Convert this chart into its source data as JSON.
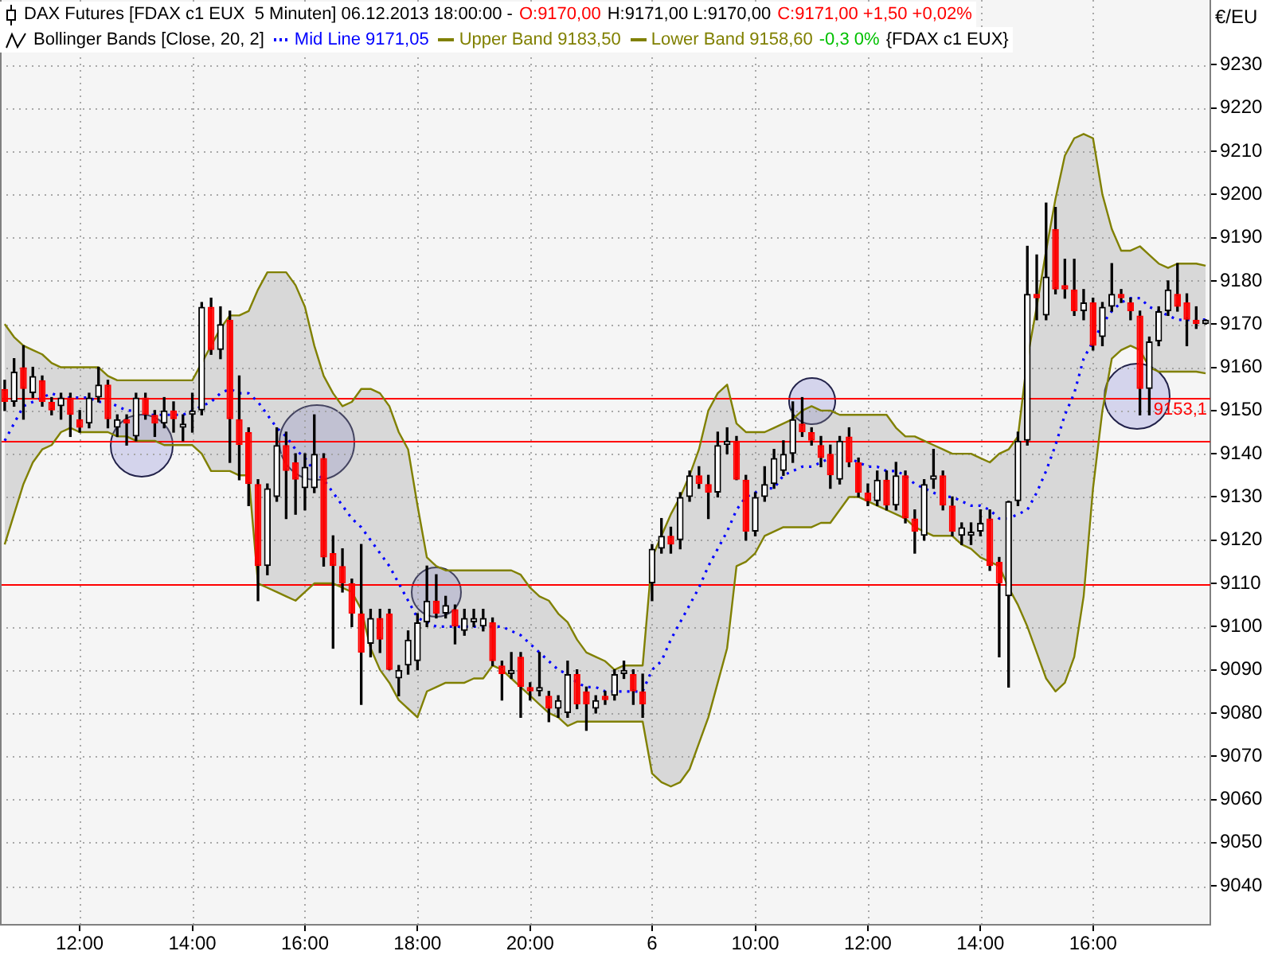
{
  "chart_data": {
    "type": "candlestick",
    "title": "DAX Futures [FDAX c1 EUX  5 Minuten] 06.12.2013 18:00:00 -",
    "subtitle": "Bollinger Bands [Close, 20, 2]",
    "ylabel": "€/EU",
    "annotations": [
      "O:9170,00",
      "H:9171,00 L:9170,00",
      "C:9171,00 +1,50 +0,02%",
      "-0,3 0%",
      "{FDAX c1 EUX}"
    ],
    "categories": [
      null,
      null,
      null,
      null,
      null,
      null,
      null,
      null,
      "12:00",
      null,
      null,
      null,
      null,
      null,
      null,
      null,
      null,
      null,
      null,
      null,
      "14:00",
      null,
      null,
      null,
      null,
      null,
      null,
      null,
      null,
      null,
      null,
      null,
      "16:00",
      null,
      null,
      null,
      null,
      null,
      null,
      null,
      null,
      null,
      null,
      null,
      "18:00",
      null,
      null,
      null,
      null,
      null,
      null,
      null,
      null,
      null,
      null,
      null,
      "20:00",
      null,
      null,
      null,
      null,
      null,
      null,
      null,
      null,
      null,
      null,
      null,
      null,
      "6",
      null,
      null,
      null,
      null,
      null,
      null,
      null,
      null,
      null,
      null,
      "10:00",
      null,
      null,
      null,
      null,
      null,
      null,
      null,
      null,
      null,
      null,
      null,
      "12:00",
      null,
      null,
      null,
      null,
      null,
      null,
      null,
      null,
      null,
      null,
      null,
      "14:00",
      null,
      null,
      null,
      null,
      null,
      null,
      null,
      null,
      null,
      null,
      null,
      "16:00",
      null,
      null,
      null,
      null,
      null,
      null,
      null,
      null,
      null,
      null,
      null,
      null
    ],
    "ohlc": [
      [
        9155,
        9157,
        9150,
        9152
      ],
      [
        9152,
        9162,
        9151,
        9159
      ],
      [
        9160,
        9165,
        9148,
        9155
      ],
      [
        9154,
        9160,
        9153,
        9158
      ],
      [
        9157,
        9158,
        9151,
        9152
      ],
      [
        9152,
        9153,
        9149,
        9150
      ],
      [
        9151,
        9154,
        9148,
        9153
      ],
      [
        9153,
        9154,
        9144,
        9149
      ],
      [
        9148,
        9150,
        9145,
        9146
      ],
      [
        9147,
        9154,
        9146,
        9153
      ],
      [
        9153,
        9160,
        9152,
        9156
      ],
      [
        9156,
        9157,
        9146,
        9148
      ],
      [
        9146,
        9149,
        9144,
        9148
      ],
      [
        9148,
        9149,
        9142,
        9147
      ],
      [
        9144,
        9154,
        9143,
        9153
      ],
      [
        9153,
        9154,
        9148,
        9149
      ],
      [
        9149,
        9150,
        9144,
        9147
      ],
      [
        9147,
        9153,
        9146,
        9150
      ],
      [
        9150,
        9152,
        9145,
        9148
      ],
      [
        9146,
        9149,
        9143,
        9147
      ],
      [
        9149,
        9154,
        9145,
        9150
      ],
      [
        9150,
        9175,
        9149,
        9174
      ],
      [
        9174,
        9176,
        9163,
        9164
      ],
      [
        9164,
        9174,
        9162,
        9170
      ],
      [
        9171,
        9173,
        9138,
        9148
      ],
      [
        9148,
        9158,
        9134,
        9142
      ],
      [
        9145,
        9146,
        9128,
        9133
      ],
      [
        9133,
        9134,
        9106,
        9114
      ],
      [
        9114,
        9133,
        9112,
        9132
      ],
      [
        9130,
        9146,
        9129,
        9142
      ],
      [
        9142,
        9145,
        9125,
        9136
      ],
      [
        9138,
        9140,
        9126,
        9134
      ],
      [
        9132,
        9140,
        9127,
        9137
      ],
      [
        9132,
        9149,
        9131,
        9140
      ],
      [
        9139,
        9140,
        9114,
        9116
      ],
      [
        9117,
        9121,
        9095,
        9114
      ],
      [
        9114,
        9118,
        9108,
        9110
      ],
      [
        9110,
        9111,
        9100,
        9103
      ],
      [
        9103,
        9119,
        9082,
        9094
      ],
      [
        9096,
        9104,
        9093,
        9102
      ],
      [
        9102,
        9104,
        9094,
        9097
      ],
      [
        9103,
        9104,
        9090,
        9090
      ],
      [
        9088,
        9091,
        9084,
        9090
      ],
      [
        9091,
        9099,
        9089,
        9097
      ],
      [
        9092,
        9103,
        9090,
        9101
      ],
      [
        9101,
        9114,
        9100,
        9106
      ],
      [
        9106,
        9112,
        9102,
        9103
      ],
      [
        9103,
        9107,
        9102,
        9105
      ],
      [
        9104,
        9105,
        9096,
        9100
      ],
      [
        9099,
        9104,
        9098,
        9102
      ],
      [
        9101,
        9104,
        9100,
        9102
      ],
      [
        9100,
        9104,
        9099,
        9102
      ],
      [
        9101,
        9102,
        9091,
        9092
      ],
      [
        9091,
        9092,
        9083,
        9089
      ],
      [
        9089,
        9094,
        9088,
        9090
      ],
      [
        9093,
        9094,
        9079,
        9086
      ],
      [
        9086,
        9087,
        9083,
        9085
      ],
      [
        9085,
        9094,
        9084,
        9086
      ],
      [
        9084,
        9085,
        9078,
        9081
      ],
      [
        9081,
        9084,
        9079,
        9083
      ],
      [
        9080,
        9092,
        9079,
        9089
      ],
      [
        9089,
        9090,
        9081,
        9082
      ],
      [
        9085,
        9086,
        9076,
        9082
      ],
      [
        9081,
        9084,
        9080,
        9083
      ],
      [
        9084,
        9085,
        9082,
        9083
      ],
      [
        9084,
        9090,
        9083,
        9089
      ],
      [
        9089,
        9092,
        9088,
        9090
      ],
      [
        9089,
        9090,
        9082,
        9085
      ],
      [
        9085,
        9089,
        9079,
        9082
      ],
      [
        9110,
        9119,
        9106,
        9118
      ],
      [
        9118,
        9125,
        9117,
        9121
      ],
      [
        9121,
        9123,
        9117,
        9119
      ],
      [
        9120,
        9131,
        9118,
        9130
      ],
      [
        9130,
        9136,
        9129,
        9135
      ],
      [
        9135,
        9137,
        9132,
        9133
      ],
      [
        9133,
        9135,
        9125,
        9131
      ],
      [
        9131,
        9145,
        9130,
        9142
      ],
      [
        9142,
        9146,
        9140,
        9143
      ],
      [
        9143,
        9144,
        9134,
        9134
      ],
      [
        9134,
        9135,
        9120,
        9122
      ],
      [
        9122,
        9131,
        9121,
        9130
      ],
      [
        9130,
        9137,
        9129,
        9133
      ],
      [
        9133,
        9141,
        9132,
        9139
      ],
      [
        9136,
        9143,
        9135,
        9140
      ],
      [
        9140,
        9152,
        9138,
        9148
      ],
      [
        9147,
        9153,
        9144,
        9145
      ],
      [
        9145,
        9146,
        9142,
        9143
      ],
      [
        9142,
        9144,
        9137,
        9139
      ],
      [
        9140,
        9142,
        9132,
        9135
      ],
      [
        9134,
        9144,
        9133,
        9143
      ],
      [
        9144,
        9146,
        9137,
        9138
      ],
      [
        9138,
        9139,
        9130,
        9131
      ],
      [
        9131,
        9133,
        9128,
        9129
      ],
      [
        9129,
        9136,
        9128,
        9134
      ],
      [
        9134,
        9136,
        9127,
        9128
      ],
      [
        9128,
        9138,
        9127,
        9135
      ],
      [
        9135,
        9136,
        9124,
        9125
      ],
      [
        9125,
        9127,
        9117,
        9122
      ],
      [
        9121,
        9134,
        9120,
        9133
      ],
      [
        9134,
        9141,
        9132,
        9135
      ],
      [
        9135,
        9136,
        9127,
        9128
      ],
      [
        9128,
        9130,
        9121,
        9122
      ],
      [
        9121,
        9124,
        9119,
        9123
      ],
      [
        9121,
        9124,
        9119,
        9122
      ],
      [
        9122,
        9127,
        9121,
        9124
      ],
      [
        9125,
        9127,
        9113,
        9114
      ],
      [
        9115,
        9116,
        9093,
        9110
      ],
      [
        9107,
        9129,
        9086,
        9129
      ],
      [
        9129,
        9145,
        9128,
        9143
      ],
      [
        9143,
        9188,
        9142,
        9177
      ],
      [
        9177,
        9186,
        9171,
        9176
      ],
      [
        9172,
        9198,
        9171,
        9181
      ],
      [
        9192,
        9197,
        9177,
        9178
      ],
      [
        9179,
        9185,
        9176,
        9178
      ],
      [
        9178,
        9185,
        9172,
        9173
      ],
      [
        9173,
        9178,
        9171,
        9175
      ],
      [
        9175,
        9176,
        9164,
        9165
      ],
      [
        9167,
        9175,
        9165,
        9174
      ],
      [
        9174,
        9184,
        9173,
        9177
      ],
      [
        9177,
        9178,
        9175,
        9176
      ],
      [
        9175,
        9176,
        9171,
        9173
      ],
      [
        9172,
        9173,
        9149,
        9155
      ],
      [
        9155,
        9167,
        9149,
        9166
      ],
      [
        9166,
        9174,
        9165,
        9173
      ],
      [
        9173,
        9180,
        9172,
        9178
      ],
      [
        9177,
        9184,
        9173,
        9174
      ],
      [
        9175,
        9177,
        9165,
        9171
      ],
      [
        9171,
        9174,
        9169,
        9170
      ],
      [
        9170,
        9171,
        9170,
        9171
      ]
    ],
    "color": "#000000",
    "colors": [
      "#ff0000",
      "#000000",
      "#ff0000",
      "#000000",
      "#ff0000",
      "#ff0000",
      "#000000",
      "#ff0000",
      "#ff0000",
      "#000000",
      "#000000",
      "#ff0000",
      "#000000",
      "#ff0000",
      "#000000",
      "#ff0000",
      "#ff0000",
      "#000000",
      "#ff0000",
      "#000000",
      "#000000",
      "#000000",
      "#ff0000",
      "#000000",
      "#ff0000",
      "#ff0000",
      "#ff0000",
      "#ff0000",
      "#000000",
      "#000000",
      "#ff0000",
      "#ff0000",
      "#000000",
      "#000000",
      "#ff0000",
      "#ff0000",
      "#ff0000",
      "#ff0000",
      "#ff0000",
      "#000000",
      "#ff0000",
      "#ff0000",
      "#000000",
      "#000000",
      "#000000",
      "#000000",
      "#ff0000",
      "#000000",
      "#ff0000",
      "#000000",
      "#000000",
      "#000000",
      "#ff0000",
      "#ff0000",
      "#000000",
      "#ff0000",
      "#ff0000",
      "#000000",
      "#ff0000",
      "#000000",
      "#000000",
      "#ff0000",
      "#ff0000",
      "#000000",
      "#ff0000",
      "#000000",
      "#000000",
      "#ff0000",
      "#ff0000",
      "#000000",
      "#000000",
      "#ff0000",
      "#000000",
      "#000000",
      "#ff0000",
      "#ff0000",
      "#000000",
      "#000000",
      "#ff0000",
      "#ff0000",
      "#000000",
      "#000000",
      "#000000",
      "#000000",
      "#000000",
      "#ff0000",
      "#ff0000",
      "#ff0000",
      "#ff0000",
      "#000000",
      "#ff0000",
      "#ff0000",
      "#ff0000",
      "#000000",
      "#ff0000",
      "#000000",
      "#ff0000",
      "#ff0000",
      "#000000",
      "#000000",
      "#ff0000",
      "#ff0000",
      "#000000",
      "#000000",
      "#000000",
      "#ff0000",
      "#ff0000",
      "#000000",
      "#000000",
      "#000000",
      "#ff0000",
      "#000000",
      "#ff0000",
      "#ff0000",
      "#ff0000",
      "#000000",
      "#ff0000",
      "#000000",
      "#000000",
      "#ff0000",
      "#ff0000",
      "#ff0000",
      "#000000",
      "#000000",
      "#000000",
      "#ff0000",
      "#ff0000",
      "#ff0000",
      "#000000"
    ],
    "series": [
      {
        "name": "Mid Line 9171,05",
        "type": "line",
        "color": "#0000ff",
        "line_style": "dotted",
        "values": [
          9143,
          9147,
          9151,
          9152,
          9153,
          9154,
          9153,
          9153,
          9153,
          9153,
          9152,
          9152,
          9151,
          9150,
          9150,
          9149,
          9149,
          9149,
          9149,
          9149,
          9150,
          9151,
          9152,
          9154,
          9155,
          9154,
          9154,
          9152,
          9149,
          9146,
          9144,
          9141,
          9139,
          9136,
          9134,
          9131,
          9128,
          9125,
          9123,
          9120,
          9117,
          9114,
          9110,
          9106,
          9102,
          9101,
          9100,
          9100,
          9100,
          9100,
          9100,
          9100,
          9100,
          9100,
          9099,
          9098,
          9096,
          9094,
          9092,
          9090,
          9089,
          9087,
          9086,
          9086,
          9085,
          9085,
          9085,
          9085,
          9085,
          9090,
          9092,
          9097,
          9101,
          9105,
          9109,
          9114,
          9118,
          9122,
          9127,
          9130,
          9131,
          9132,
          9132,
          9135,
          9136,
          9137,
          9137,
          9138,
          9139,
          9139,
          9139,
          9138,
          9137,
          9137,
          9136,
          9136,
          9135,
          9133,
          9132,
          9131,
          9130,
          9130,
          9129,
          9128,
          9128,
          9127,
          9125,
          9125,
          9126,
          9127,
          9131,
          9136,
          9142,
          9149,
          9154,
          9162,
          9166,
          9170,
          9173,
          9175,
          9176,
          9176,
          9174,
          9173,
          9172,
          9171,
          9171,
          9171,
          9171.05
        ]
      },
      {
        "name": "Upper Band 9183,50",
        "type": "area",
        "color": "#808000",
        "line_style": "solid",
        "values": [
          9170,
          9167,
          9165,
          9164,
          9163,
          9161,
          9160,
          9160,
          9160,
          9160,
          9160,
          9158,
          9157,
          9157,
          9157,
          9157,
          9157,
          9157,
          9157,
          9157,
          9157,
          9161,
          9165,
          9169,
          9172,
          9172,
          9173,
          9178,
          9182,
          9182,
          9182,
          9179,
          9174,
          9165,
          9158,
          9154,
          9151,
          9152,
          9155,
          9155,
          9154,
          9151,
          9145,
          9141,
          9128,
          9116,
          9114,
          9113,
          9113,
          9113,
          9113,
          9113,
          9113,
          9113,
          9113,
          9112,
          9109,
          9107,
          9106,
          9103,
          9101,
          9097,
          9094,
          9093,
          9092,
          9090,
          9091,
          9091,
          9091,
          9116,
          9121,
          9126,
          9130,
          9135,
          9141,
          9150,
          9154,
          9156,
          9147,
          9145,
          9145,
          9145,
          9146,
          9147,
          9148,
          9150,
          9151,
          9150,
          9150,
          9149,
          9149,
          9149,
          9149,
          9149,
          9149,
          9146,
          9144,
          9144,
          9143,
          9142,
          9141,
          9140,
          9140,
          9140,
          9139,
          9138,
          9140,
          9141,
          9144,
          9162,
          9174,
          9187,
          9199,
          9209,
          9213,
          9214,
          9213,
          9200,
          9192,
          9187,
          9187,
          9188,
          9186,
          9184,
          9183,
          9184,
          9184,
          9184,
          9183.5
        ]
      },
      {
        "name": "Lower Band 9158,60",
        "type": "line",
        "color": "#808000",
        "line_style": "solid",
        "values": [
          9119,
          9126,
          9133,
          9138,
          9141,
          9142,
          9145,
          9146,
          9145,
          9145,
          9145,
          9145,
          9144,
          9144,
          9143,
          9143,
          9143,
          9142,
          9142,
          9142,
          9142,
          9140,
          9136,
          9136,
          9136,
          9135,
          9135,
          9110,
          9109,
          9108,
          9107,
          9106,
          9108,
          9110,
          9110,
          9110,
          9109,
          9108,
          9104,
          9095,
          9090,
          9087,
          9083,
          9081,
          9079,
          9085,
          9086,
          9087,
          9087,
          9087,
          9088,
          9088,
          9091,
          9090,
          9088,
          9086,
          9084,
          9082,
          9080,
          9079,
          9077,
          9078,
          9078,
          9078,
          9078,
          9078,
          9078,
          9078,
          9078,
          9066,
          9064,
          9063,
          9064,
          9067,
          9073,
          9079,
          9087,
          9095,
          9114,
          9115,
          9117,
          9121,
          9122,
          9123,
          9123,
          9123,
          9123,
          9124,
          9124,
          9127,
          9130,
          9130,
          9129,
          9128,
          9127,
          9126,
          9125,
          9123,
          9122,
          9121,
          9121,
          9121,
          9119,
          9118,
          9116,
          9115,
          9114,
          9109,
          9105,
          9100,
          9094,
          9088,
          9085,
          9087,
          9093,
          9107,
          9132,
          9150,
          9162,
          9164,
          9165,
          9164,
          9160,
          9159,
          9159,
          9159,
          9159,
          9159,
          9158.6
        ]
      }
    ],
    "ylim": [
      9031,
      9245
    ],
    "yticks": [
      9040,
      9050,
      9060,
      9070,
      9080,
      9090,
      9100,
      9110,
      9120,
      9130,
      9140,
      9150,
      9160,
      9170,
      9180,
      9190,
      9200,
      9210,
      9220,
      9230
    ],
    "grid": true,
    "legend": "top left",
    "marker": "none",
    "ref_lines": [
      {
        "axis": "y",
        "value": 9153.1,
        "label": "9153,1",
        "color": "#ff0000"
      },
      {
        "axis": "y",
        "value": 9143,
        "color": "#ff0000"
      },
      {
        "axis": "y",
        "value": 9110,
        "color": "#ff0000"
      }
    ]
  }
}
